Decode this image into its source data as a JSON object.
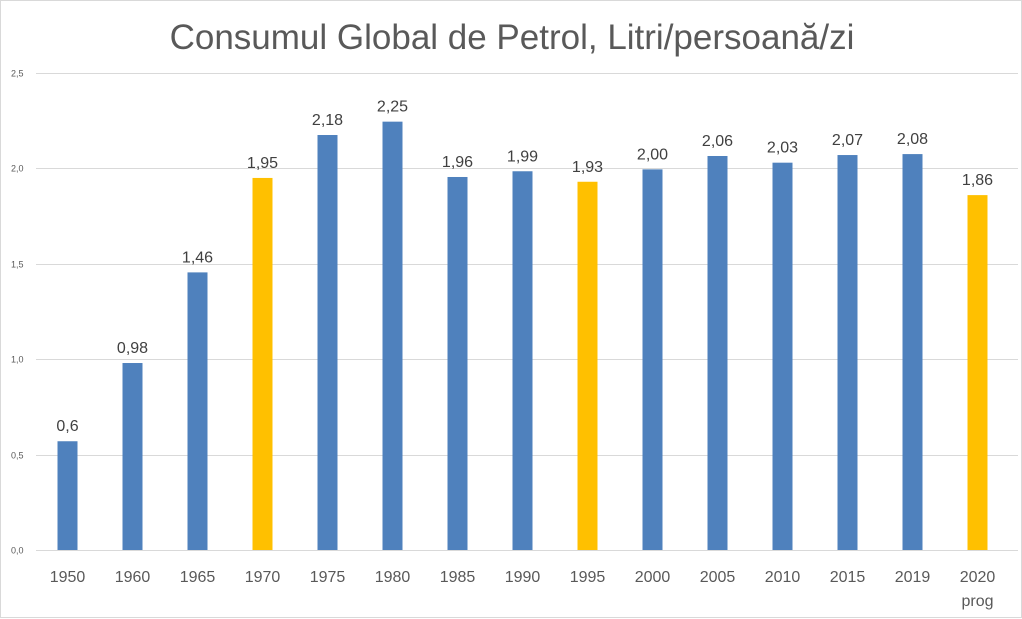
{
  "chart_data": {
    "type": "bar",
    "title": "Consumul Global de Petrol, Litri/persoană/zi",
    "xlabel": "",
    "ylabel": "",
    "ylim": [
      0,
      2.5
    ],
    "yticks": [
      "0,0",
      "0,5",
      "1,0",
      "1,5",
      "2,0",
      "2,5"
    ],
    "ytick_values": [
      0,
      0.5,
      1.0,
      1.5,
      2.0,
      2.5
    ],
    "grid": true,
    "legend": "none",
    "categories": [
      "1950",
      "1960",
      "1965",
      "1970",
      "1975",
      "1980",
      "1985",
      "1990",
      "1995",
      "2000",
      "2005",
      "2010",
      "2015",
      "2019",
      "2020"
    ],
    "category_sublabels": [
      "",
      "",
      "",
      "",
      "",
      "",
      "",
      "",
      "",
      "",
      "",
      "",
      "",
      "",
      "prog"
    ],
    "values": [
      0.57,
      0.98,
      1.455,
      1.95,
      2.175,
      2.245,
      1.955,
      1.985,
      1.93,
      1.995,
      2.065,
      2.03,
      2.07,
      2.075,
      1.86
    ],
    "data_labels": [
      "0,6",
      "0,98",
      "1,46",
      "1,95",
      "2,18",
      "2,25",
      "1,96",
      "1,99",
      "1,93",
      "2,00",
      "2,06",
      "2,03",
      "2,07",
      "2,08",
      "1,86"
    ],
    "highlighted": [
      false,
      false,
      false,
      true,
      false,
      false,
      false,
      false,
      true,
      false,
      false,
      false,
      false,
      false,
      true
    ],
    "colors": {
      "bar": "#4f81bd",
      "highlight": "#ffc000",
      "grid": "#d9d9d9",
      "text": "#595959",
      "label": "#404040"
    }
  }
}
